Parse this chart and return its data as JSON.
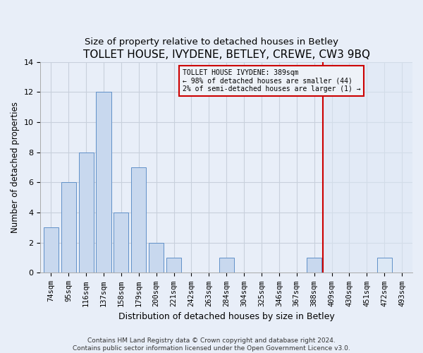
{
  "title": "TOLLET HOUSE, IVYDENE, BETLEY, CREWE, CW3 9BQ",
  "subtitle": "Size of property relative to detached houses in Betley",
  "xlabel": "Distribution of detached houses by size in Betley",
  "ylabel": "Number of detached properties",
  "categories": [
    "74sqm",
    "95sqm",
    "116sqm",
    "137sqm",
    "158sqm",
    "179sqm",
    "200sqm",
    "221sqm",
    "242sqm",
    "263sqm",
    "284sqm",
    "304sqm",
    "325sqm",
    "346sqm",
    "367sqm",
    "388sqm",
    "409sqm",
    "430sqm",
    "451sqm",
    "472sqm",
    "493sqm"
  ],
  "values": [
    3,
    6,
    8,
    12,
    4,
    7,
    2,
    1,
    0,
    0,
    1,
    0,
    0,
    0,
    0,
    1,
    0,
    0,
    0,
    1,
    0
  ],
  "bar_color_left": "#c8d8ee",
  "bar_color_right": "#dce8f5",
  "bar_edge_color": "#6090c8",
  "grid_color": "#c8d0dc",
  "vline_color": "#cc0000",
  "vline_x": 15.5,
  "annotation_text": "TOLLET HOUSE IVYDENE: 389sqm\n← 98% of detached houses are smaller (44)\n2% of semi-detached houses are larger (1) →",
  "annotation_box_color": "#cc0000",
  "annotation_bg": "#eef2f8",
  "footer": "Contains HM Land Registry data © Crown copyright and database right 2024.\nContains public sector information licensed under the Open Government Licence v3.0.",
  "ylim": [
    0,
    14
  ],
  "yticks": [
    0,
    2,
    4,
    6,
    8,
    10,
    12,
    14
  ],
  "title_fontsize": 11,
  "subtitle_fontsize": 9.5,
  "axis_label_fontsize": 9,
  "tick_fontsize": 7.5,
  "ylabel_fontsize": 8.5,
  "bg_left": "#e8eef8",
  "bg_right": "#dde8f5"
}
